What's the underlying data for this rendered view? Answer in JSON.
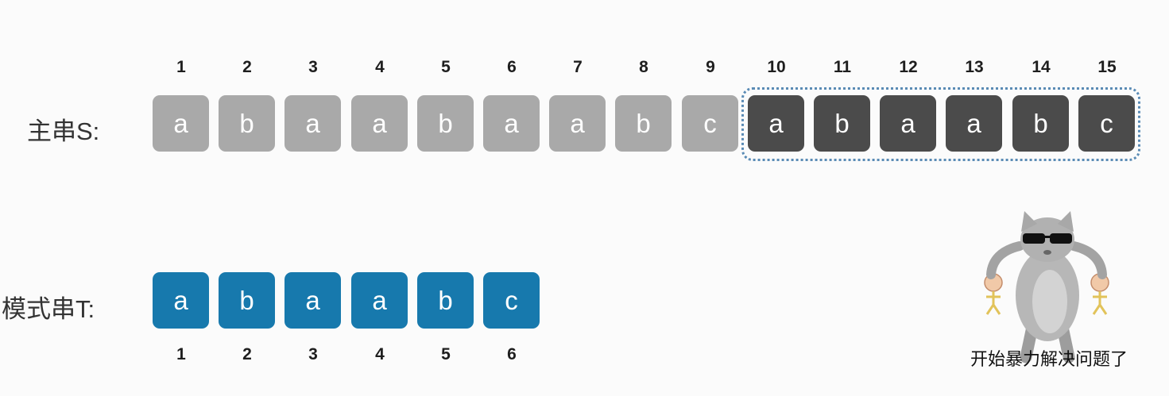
{
  "main_string": {
    "label": "主串S:",
    "chars": [
      "a",
      "b",
      "a",
      "a",
      "b",
      "a",
      "a",
      "b",
      "c",
      "a",
      "b",
      "a",
      "a",
      "b",
      "c"
    ],
    "indices": [
      "1",
      "2",
      "3",
      "4",
      "5",
      "6",
      "7",
      "8",
      "9",
      "10",
      "11",
      "12",
      "13",
      "14",
      "15"
    ],
    "highlight_start_index": 10
  },
  "pattern_string": {
    "label": "模式串T:",
    "chars": [
      "a",
      "b",
      "a",
      "a",
      "b",
      "c"
    ],
    "indices": [
      "1",
      "2",
      "3",
      "4",
      "5",
      "6"
    ]
  },
  "sticker": {
    "caption": "开始暴力解决问题了",
    "icon": "cool-cat-sunglasses-icon"
  },
  "colors": {
    "light_cell": "#a9a9a9",
    "dark_cell": "#4b4b4b",
    "pattern_cell": "#1779ad",
    "highlight_border": "#5a8bb5"
  }
}
